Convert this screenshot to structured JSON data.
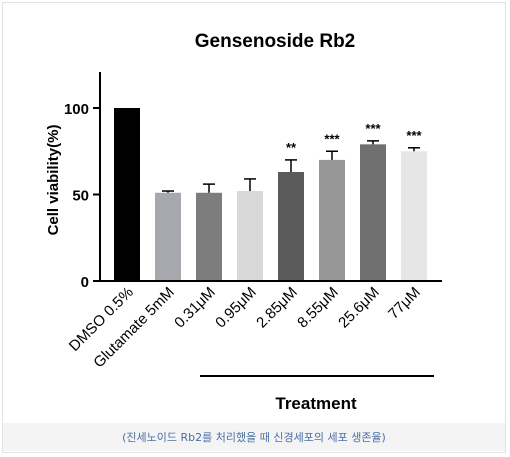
{
  "chart_data": {
    "type": "bar",
    "title": "Gensenoside Rb2",
    "ylabel": "Cell viability(%)",
    "xlabel": "Treatment",
    "ylim": [
      0,
      100
    ],
    "yticks": [
      0,
      50,
      100
    ],
    "categories": [
      "DMSO 0.5%",
      "Glutamate 5mM",
      "0.31μM",
      "0.95μM",
      "2.85μM",
      "8.55μM",
      "25.6μM",
      "77μM"
    ],
    "values": [
      100,
      51,
      51,
      52,
      63,
      70,
      79,
      75
    ],
    "errors": [
      0,
      1,
      5,
      7,
      7,
      5,
      2,
      2
    ],
    "significance": [
      "",
      "",
      "",
      "",
      "**",
      "***",
      "***",
      "***"
    ],
    "colors": [
      "#000000",
      "#a7a7ae",
      "#7d7d7d",
      "#d8d8d8",
      "#5a5a5a",
      "#969696",
      "#707070",
      "#e6e6e6"
    ],
    "grid": false
  },
  "caption": "(진세노이드 Rb2를 처리했을 때 신경세포의 세포 생존율)"
}
